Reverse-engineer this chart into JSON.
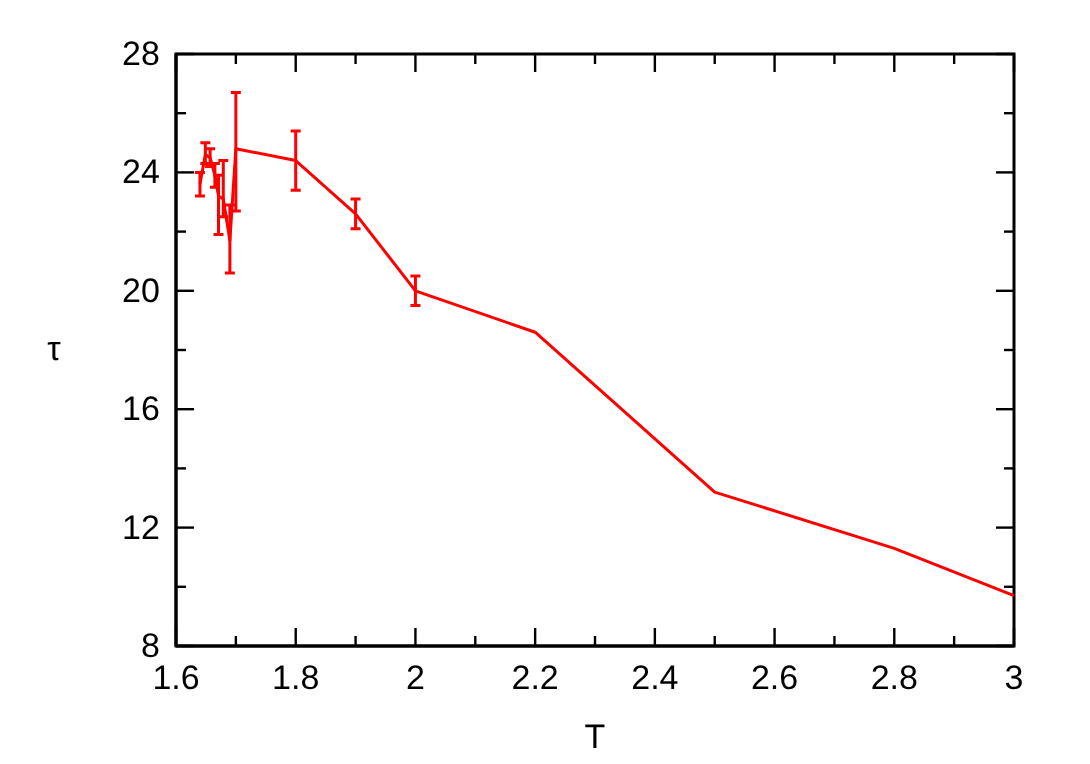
{
  "chart_data": {
    "type": "line",
    "xlabel": "T",
    "ylabel": "τ",
    "x": [
      1.64,
      1.649,
      1.657,
      1.665,
      1.671,
      1.679,
      1.69,
      1.7,
      1.8,
      1.9,
      2.0,
      2.2,
      2.5,
      2.8,
      3.0
    ],
    "series": [
      {
        "color": "#ff0000",
        "values": [
          23.6,
          24.6,
          24.5,
          23.9,
          23.2,
          23.1,
          21.7,
          24.8,
          24.4,
          22.6,
          20.0,
          18.6,
          13.2,
          11.3,
          9.7
        ],
        "errors": [
          [
            23.2,
            24.0
          ],
          [
            24.3,
            25.0
          ],
          [
            24.2,
            24.8
          ],
          [
            23.5,
            24.3
          ],
          [
            21.9,
            23.9
          ],
          [
            22.5,
            24.4
          ],
          [
            20.6,
            22.9
          ],
          [
            22.7,
            26.7
          ],
          [
            23.4,
            25.4
          ],
          [
            22.1,
            23.1
          ],
          [
            19.5,
            20.5
          ],
          null,
          null,
          null,
          null
        ]
      }
    ],
    "xlim": [
      1.6,
      3.0
    ],
    "ylim": [
      8,
      28
    ],
    "xticks": [
      1.6,
      {
        "value": 1.7,
        "label": null
      },
      1.8,
      {
        "value": 1.9,
        "label": null
      },
      2,
      {
        "value": 2.1,
        "label": null
      },
      2.2,
      {
        "value": 2.3,
        "label": null
      },
      2.4,
      {
        "value": 2.5,
        "label": null
      },
      2.6,
      {
        "value": 2.7,
        "label": null
      },
      2.8,
      {
        "value": 2.9,
        "label": null
      },
      3
    ],
    "yticks": [
      8,
      {
        "value": 10,
        "label": null
      },
      12,
      {
        "value": 14,
        "label": null
      },
      16,
      {
        "value": 18,
        "label": null
      },
      20,
      {
        "value": 22,
        "label": null
      },
      24,
      {
        "value": 26,
        "label": null
      },
      28
    ],
    "marker": "none",
    "line_style": "solid"
  }
}
